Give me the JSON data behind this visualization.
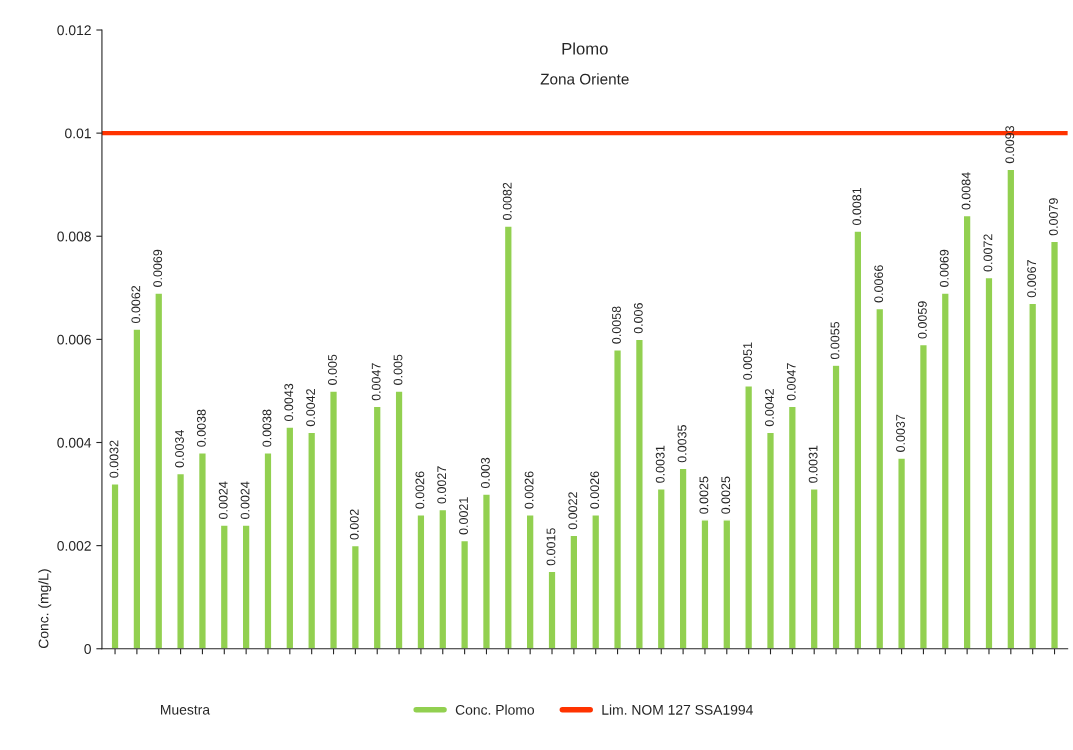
{
  "chart_data": {
    "type": "bar",
    "title": "Plomo",
    "subtitle": "Zona Oriente",
    "xlabel": "Muestra",
    "ylabel": "Conc. (mg/L)",
    "categories": [
      null,
      null,
      null,
      null,
      null,
      null,
      null,
      null,
      null,
      null,
      null,
      null,
      null,
      null,
      null,
      null,
      null,
      null,
      null,
      null,
      null,
      null,
      null,
      null,
      null,
      null,
      null,
      null,
      null,
      null,
      null,
      null,
      null,
      null,
      null,
      null,
      null,
      null,
      null,
      null,
      null,
      null,
      null,
      null
    ],
    "series": [
      {
        "name": "Conc. Plomo",
        "color": "#92d050",
        "values": [
          0.0032,
          0.0062,
          0.0069,
          0.0034,
          0.0038,
          0.0024,
          0.0024,
          0.0038,
          0.0043,
          0.0042,
          0.005,
          0.002,
          0.0047,
          0.005,
          0.0026,
          0.0027,
          0.0021,
          0.003,
          0.0082,
          0.0026,
          0.0015,
          0.0022,
          0.0026,
          0.0058,
          0.006,
          0.0031,
          0.0035,
          0.0025,
          0.0025,
          0.0051,
          0.0042,
          0.0047,
          0.0031,
          0.0055,
          0.0081,
          0.0066,
          0.0037,
          0.0059,
          0.0069,
          0.0084,
          0.0072,
          0.0093,
          0.0067,
          0.0079
        ]
      }
    ],
    "data_labels": true,
    "ref_lines": [
      {
        "axis": "y",
        "value": 0.01,
        "label": "Lim. NOM 127 SSA1994",
        "color": "#ff3300"
      }
    ],
    "ylim": [
      0,
      0.012
    ],
    "yticks": [
      0,
      0.002,
      0.004,
      0.006,
      0.008,
      0.01,
      0.012
    ],
    "grid": false,
    "legend": "bottom"
  }
}
